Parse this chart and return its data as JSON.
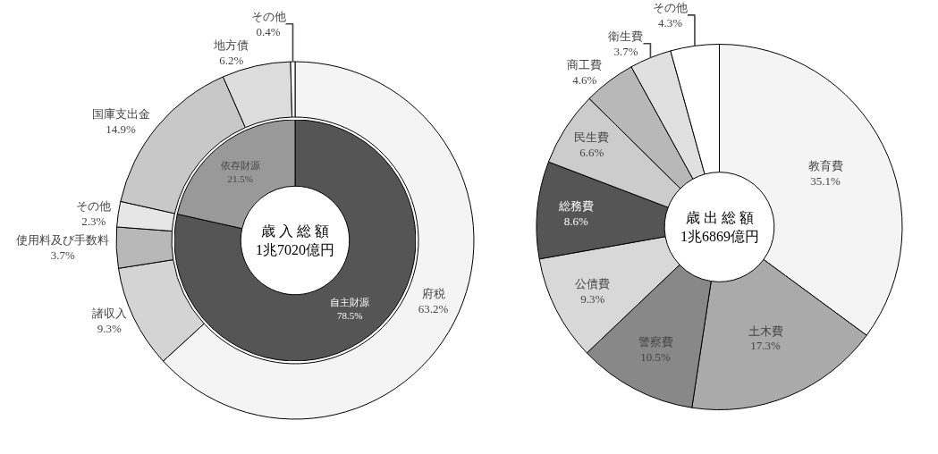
{
  "chart_data": [
    {
      "type": "donut",
      "categories": [
        "府税",
        "諸収入",
        "使用料及び手数料",
        "その他",
        "国庫支出金",
        "地方債",
        "その他"
      ],
      "values": [
        63.2,
        9.3,
        3.7,
        2.3,
        14.9,
        6.2,
        0.4
      ],
      "value_labels": [
        "63.2%",
        "9.3%",
        "3.7%",
        "2.3%",
        "14.9%",
        "6.2%",
        "0.4%"
      ],
      "colors": [
        "#f4f4f4",
        "#d4d4d4",
        "#b8b8b8",
        "#e6e6e6",
        "#c8c8c8",
        "#dddddd",
        "#ffffff"
      ]
    },
    {
      "type": "donut",
      "title": "歳 入 総 額\n1兆7020億円",
      "categories": [
        "自主財源",
        "依存財源"
      ],
      "values": [
        78.5,
        21.5
      ],
      "value_labels": [
        "78.5%",
        "21.5%"
      ],
      "colors": [
        "#555555",
        "#999999"
      ]
    },
    {
      "type": "donut",
      "title": "歳 出 総 額\n1兆6869億円",
      "categories": [
        "教育費",
        "土木費",
        "警察費",
        "公債費",
        "総務費",
        "民生費",
        "商工費",
        "衛生費",
        "その他"
      ],
      "values": [
        35.1,
        17.3,
        10.5,
        9.3,
        8.6,
        6.6,
        4.6,
        3.7,
        4.3
      ],
      "value_labels": [
        "35.1%",
        "17.3%",
        "10.5%",
        "9.3%",
        "8.6%",
        "6.6%",
        "4.6%",
        "3.7%",
        "4.3%"
      ],
      "colors": [
        "#f4f4f4",
        "#aaaaaa",
        "#888888",
        "#d8d8d8",
        "#555555",
        "#cccccc",
        "#b8b8b8",
        "#e0e0e0",
        "#ffffff"
      ]
    }
  ]
}
